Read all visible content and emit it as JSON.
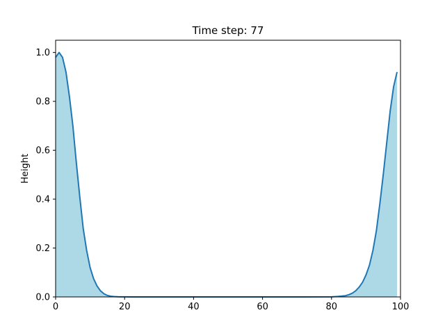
{
  "chart_data": {
    "type": "area",
    "title": "Time step: 77",
    "xlabel": "",
    "ylabel": "Height",
    "xlim": [
      0,
      100
    ],
    "ylim": [
      0,
      1.05
    ],
    "xticks": [
      0,
      20,
      40,
      60,
      80,
      100
    ],
    "xtick_labels": [
      "0",
      "20",
      "40",
      "60",
      "80",
      "100"
    ],
    "yticks": [
      0.0,
      0.2,
      0.4,
      0.6,
      0.8,
      1.0
    ],
    "ytick_labels": [
      "0.0",
      "0.2",
      "0.4",
      "0.6",
      "0.8",
      "1.0"
    ],
    "grid": false,
    "line_color": "#1f77b4",
    "fill_color": "#add8e6",
    "series": [
      {
        "x": [
          0,
          1,
          2,
          3,
          4,
          5,
          6,
          7,
          8,
          9,
          10,
          11,
          12,
          13,
          14,
          15,
          16,
          17,
          18,
          19,
          20,
          22,
          25,
          30,
          40,
          50,
          60,
          70,
          80,
          82,
          84,
          85,
          86,
          87,
          88,
          89,
          90,
          91,
          92,
          93,
          94,
          95,
          96,
          97,
          98,
          99
        ],
        "y": [
          0.98,
          1.0,
          0.98,
          0.92,
          0.82,
          0.7,
          0.55,
          0.41,
          0.28,
          0.19,
          0.12,
          0.075,
          0.045,
          0.025,
          0.013,
          0.006,
          0.003,
          0.0015,
          0.0008,
          0.0004,
          0.0002,
          0.0,
          0.0,
          0.0,
          0.0,
          0.0,
          0.0,
          0.0,
          0.0005,
          0.002,
          0.005,
          0.009,
          0.015,
          0.025,
          0.04,
          0.06,
          0.09,
          0.13,
          0.19,
          0.27,
          0.38,
          0.5,
          0.63,
          0.76,
          0.86,
          0.92
        ]
      }
    ]
  }
}
